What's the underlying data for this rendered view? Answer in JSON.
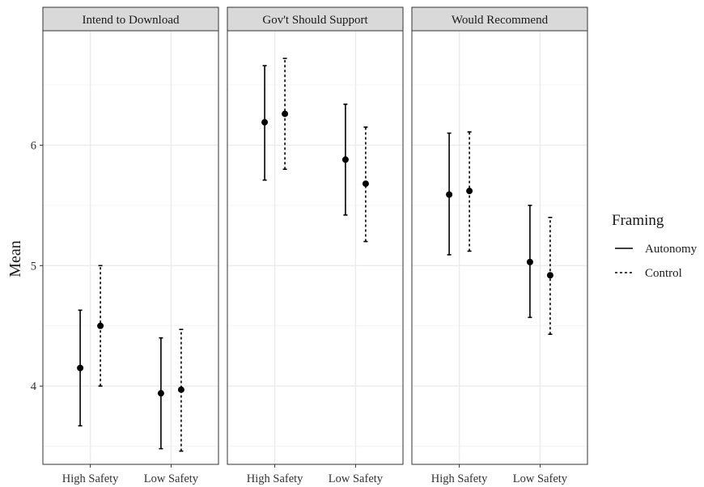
{
  "chart_data": {
    "type": "errorbar",
    "ylabel": "Mean",
    "ylim": [
      3.35,
      6.95
    ],
    "y_ticks": [
      4,
      5,
      6
    ],
    "categories": [
      "High Safety",
      "Low Safety"
    ],
    "legend": {
      "title": "Framing",
      "position": "right",
      "entries": [
        {
          "label": "Autonomy",
          "line": "solid"
        },
        {
          "label": "Control",
          "line": "dashed"
        }
      ]
    },
    "grid": true,
    "panels": [
      {
        "title": "Intend to Download",
        "series": [
          {
            "name": "Autonomy",
            "values": [
              {
                "category": "High Safety",
                "mean": 4.15,
                "lower": 3.67,
                "upper": 4.63
              },
              {
                "category": "Low Safety",
                "mean": 3.94,
                "lower": 3.48,
                "upper": 4.4
              }
            ]
          },
          {
            "name": "Control",
            "values": [
              {
                "category": "High Safety",
                "mean": 4.5,
                "lower": 4.0,
                "upper": 5.0
              },
              {
                "category": "Low Safety",
                "mean": 3.97,
                "lower": 3.46,
                "upper": 4.47
              }
            ]
          }
        ]
      },
      {
        "title": "Gov't Should Support",
        "series": [
          {
            "name": "Autonomy",
            "values": [
              {
                "category": "High Safety",
                "mean": 6.19,
                "lower": 5.71,
                "upper": 6.66
              },
              {
                "category": "Low Safety",
                "mean": 5.88,
                "lower": 5.42,
                "upper": 6.34
              }
            ]
          },
          {
            "name": "Control",
            "values": [
              {
                "category": "High Safety",
                "mean": 6.26,
                "lower": 5.8,
                "upper": 6.72
              },
              {
                "category": "Low Safety",
                "mean": 5.68,
                "lower": 5.2,
                "upper": 6.15
              }
            ]
          }
        ]
      },
      {
        "title": "Would Recommend",
        "series": [
          {
            "name": "Autonomy",
            "values": [
              {
                "category": "High Safety",
                "mean": 5.59,
                "lower": 5.09,
                "upper": 6.1
              },
              {
                "category": "Low Safety",
                "mean": 5.03,
                "lower": 4.57,
                "upper": 5.5
              }
            ]
          },
          {
            "name": "Control",
            "values": [
              {
                "category": "High Safety",
                "mean": 5.62,
                "lower": 5.12,
                "upper": 6.11
              },
              {
                "category": "Low Safety",
                "mean": 4.92,
                "lower": 4.43,
                "upper": 5.4
              }
            ]
          }
        ]
      }
    ]
  }
}
